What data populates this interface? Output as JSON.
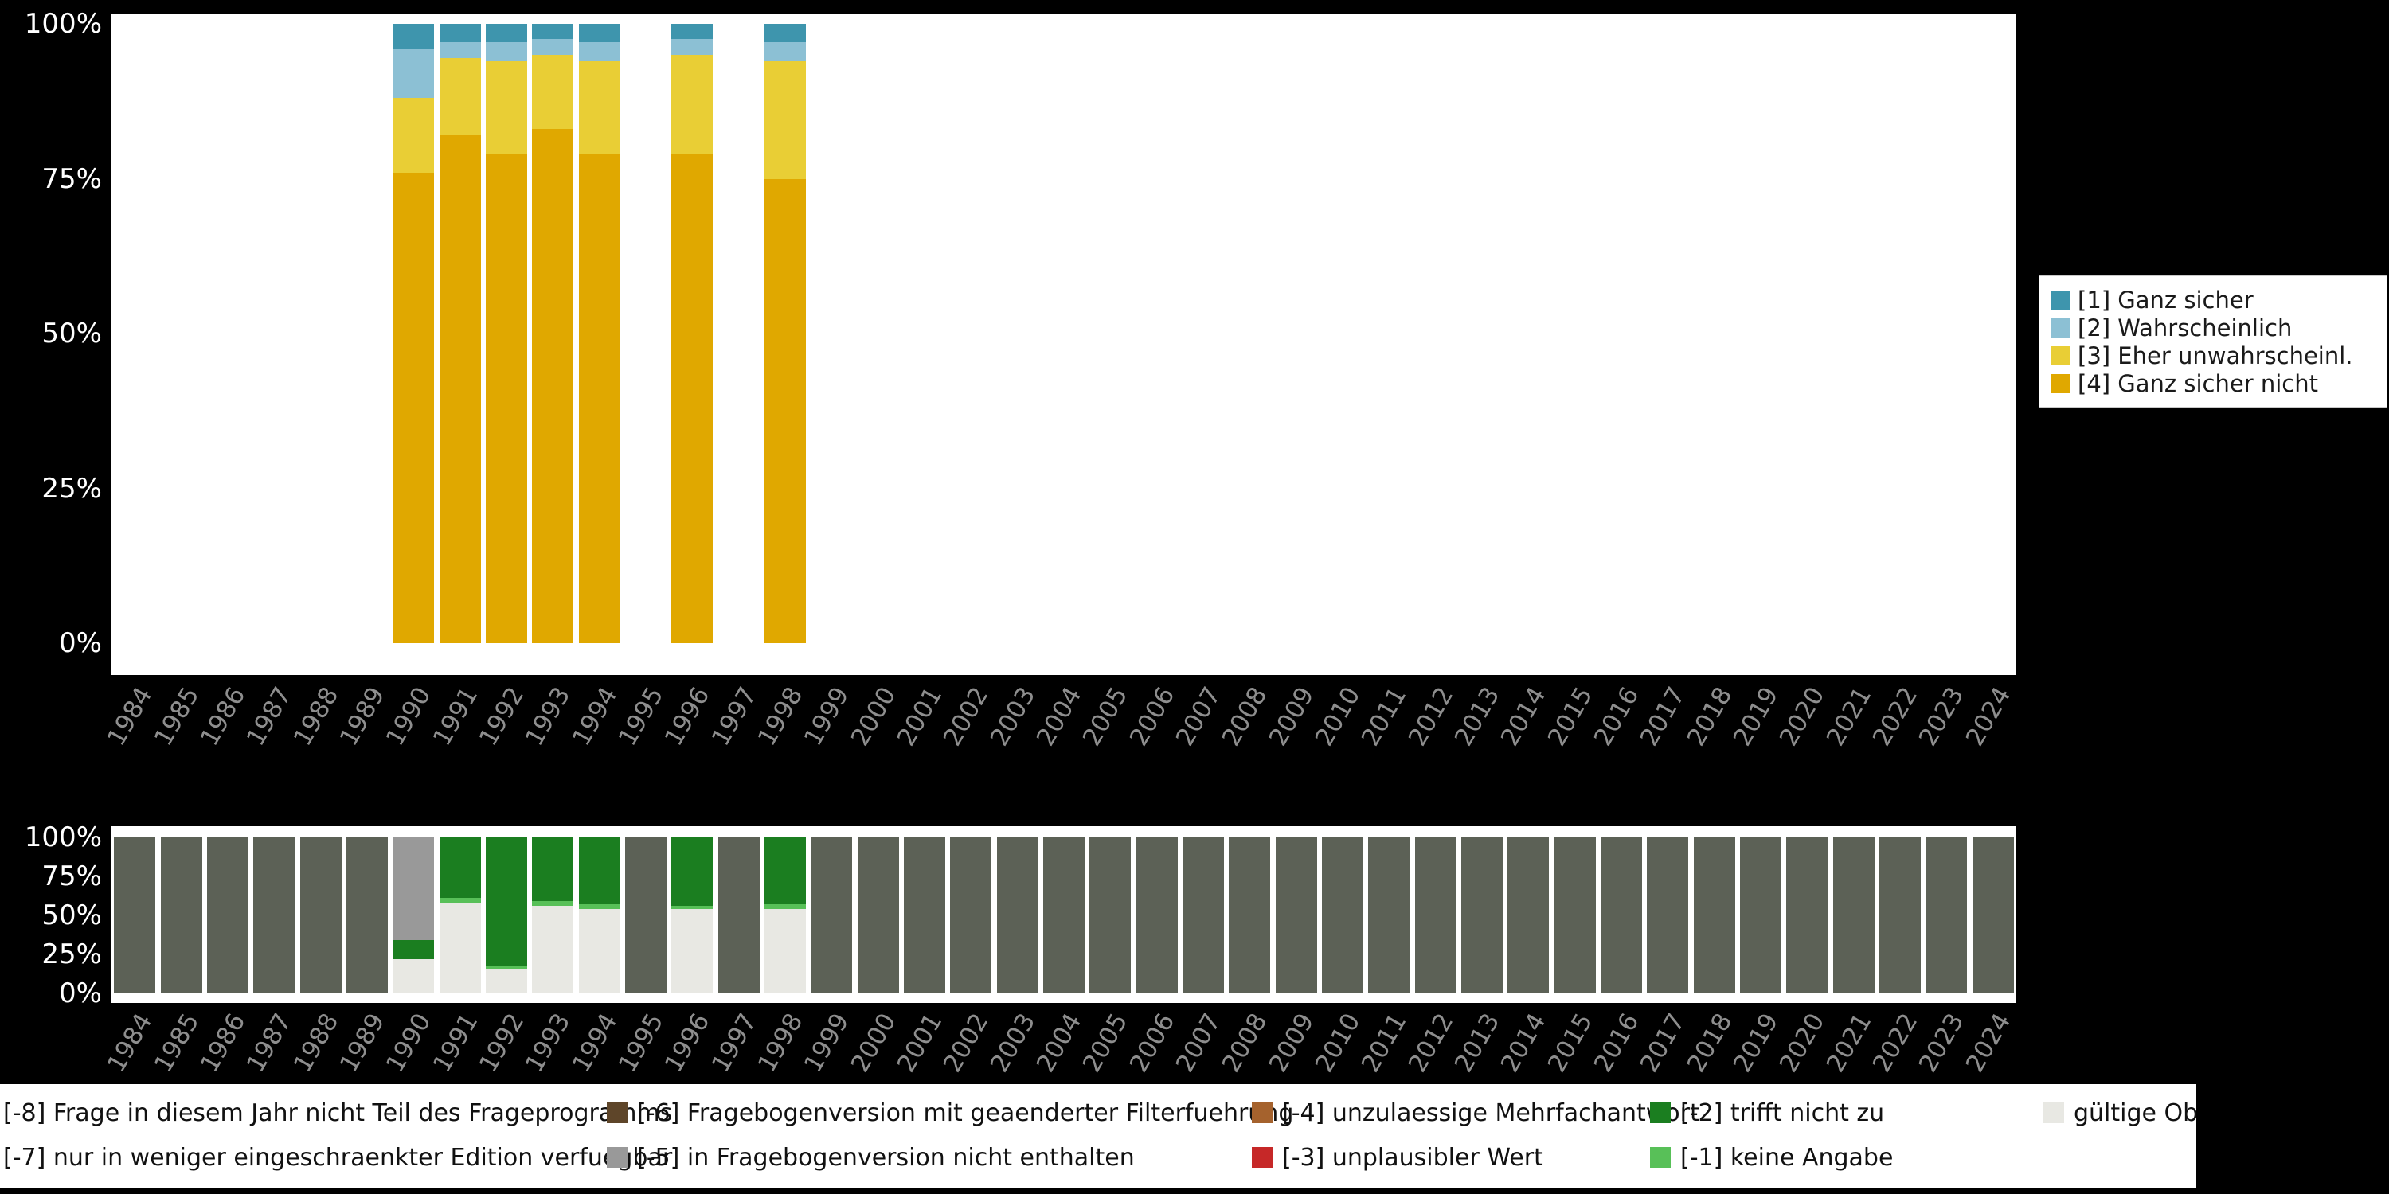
{
  "colors": {
    "background": "#000000",
    "panel": "#ffffff",
    "x_axis_text": "#8e8e8e",
    "y_axis_text": "#ffffff"
  },
  "y_ticks": [
    "100%",
    "75%",
    "50%",
    "25%",
    "0%"
  ],
  "top_legend": {
    "items": [
      {
        "label": "[1] Ganz sicher",
        "color": "#3e95ad"
      },
      {
        "label": "[2] Wahrscheinlich",
        "color": "#8cc0d4"
      },
      {
        "label": "[3] Eher unwahrscheinl.",
        "color": "#e9ce35"
      },
      {
        "label": "[4] Ganz sicher nicht",
        "color": "#e0a800"
      }
    ]
  },
  "bottom_legend": {
    "rows": [
      [
        {
          "code": "-8",
          "label": "[-8] Frage in diesem Jahr nicht Teil des Frageprogramms",
          "color": "#5c6156"
        },
        {
          "code": "-6",
          "label": "[-6] Fragebogenversion mit geaenderter Filterfuehrung",
          "color": "#5e4529"
        },
        {
          "code": "-4",
          "label": "[-4] unzulaessige Mehrfachantwort",
          "color": "#a5622d"
        },
        {
          "code": "-2",
          "label": "[-2] trifft nicht zu",
          "color": "#1b7e20"
        },
        {
          "code": "valid",
          "label": "gültige Observationen",
          "color": "#e8e8e3"
        }
      ],
      [
        {
          "code": "-7",
          "label": "[-7] nur in weniger eingeschraenkter Edition verfuegbar",
          "color": "#777777"
        },
        {
          "code": "-5",
          "label": "[-5] in Fragebogenversion nicht enthalten",
          "color": "#999999"
        },
        {
          "code": "-3",
          "label": "[-3] unplausibler Wert",
          "color": "#c62828"
        },
        {
          "code": "-1",
          "label": "[-1] keine Angabe",
          "color": "#58c058"
        }
      ]
    ]
  },
  "chart_data": [
    {
      "type": "bar",
      "stacked": true,
      "unit": "percent",
      "ylim": [
        0,
        100
      ],
      "y_tick_labels": [
        "0%",
        "25%",
        "50%",
        "75%",
        "100%"
      ],
      "legend_position": "right",
      "grid": false,
      "categories": [
        "1984",
        "1985",
        "1986",
        "1987",
        "1988",
        "1989",
        "1990",
        "1991",
        "1992",
        "1993",
        "1994",
        "1995",
        "1996",
        "1997",
        "1998",
        "1999",
        "2000",
        "2001",
        "2002",
        "2003",
        "2004",
        "2005",
        "2006",
        "2007",
        "2008",
        "2009",
        "2010",
        "2011",
        "2012",
        "2013",
        "2014",
        "2015",
        "2016",
        "2017",
        "2018",
        "2019",
        "2020",
        "2021",
        "2022",
        "2023",
        "2024"
      ],
      "series": [
        {
          "name": "[4] Ganz sicher nicht",
          "color": "#e0a800",
          "values": [
            0,
            0,
            0,
            0,
            0,
            0,
            76,
            82,
            79,
            83,
            79,
            0,
            79,
            0,
            75,
            0,
            0,
            0,
            0,
            0,
            0,
            0,
            0,
            0,
            0,
            0,
            0,
            0,
            0,
            0,
            0,
            0,
            0,
            0,
            0,
            0,
            0,
            0,
            0,
            0,
            0
          ]
        },
        {
          "name": "[3] Eher unwahrscheinl.",
          "color": "#e9ce35",
          "values": [
            0,
            0,
            0,
            0,
            0,
            0,
            12,
            12.5,
            15,
            12,
            15,
            0,
            16,
            0,
            19,
            0,
            0,
            0,
            0,
            0,
            0,
            0,
            0,
            0,
            0,
            0,
            0,
            0,
            0,
            0,
            0,
            0,
            0,
            0,
            0,
            0,
            0,
            0,
            0,
            0,
            0
          ]
        },
        {
          "name": "[2] Wahrscheinlich",
          "color": "#8cc0d4",
          "values": [
            0,
            0,
            0,
            0,
            0,
            0,
            8,
            2.5,
            3,
            2.5,
            3,
            0,
            2.5,
            0,
            3,
            0,
            0,
            0,
            0,
            0,
            0,
            0,
            0,
            0,
            0,
            0,
            0,
            0,
            0,
            0,
            0,
            0,
            0,
            0,
            0,
            0,
            0,
            0,
            0,
            0,
            0
          ]
        },
        {
          "name": "[1] Ganz sicher",
          "color": "#3e95ad",
          "values": [
            0,
            0,
            0,
            0,
            0,
            0,
            4,
            3,
            3,
            2.5,
            3,
            0,
            2.5,
            0,
            3,
            0,
            0,
            0,
            0,
            0,
            0,
            0,
            0,
            0,
            0,
            0,
            0,
            0,
            0,
            0,
            0,
            0,
            0,
            0,
            0,
            0,
            0,
            0,
            0,
            0,
            0
          ]
        }
      ]
    },
    {
      "type": "bar",
      "stacked": true,
      "unit": "percent",
      "ylim": [
        0,
        100
      ],
      "y_tick_labels": [
        "0%",
        "25%",
        "50%",
        "75%",
        "100%"
      ],
      "legend_position": "bottom",
      "grid": false,
      "categories": [
        "1984",
        "1985",
        "1986",
        "1987",
        "1988",
        "1989",
        "1990",
        "1991",
        "1992",
        "1993",
        "1994",
        "1995",
        "1996",
        "1997",
        "1998",
        "1999",
        "2000",
        "2001",
        "2002",
        "2003",
        "2004",
        "2005",
        "2006",
        "2007",
        "2008",
        "2009",
        "2010",
        "2011",
        "2012",
        "2013",
        "2014",
        "2015",
        "2016",
        "2017",
        "2018",
        "2019",
        "2020",
        "2021",
        "2022",
        "2023",
        "2024"
      ],
      "series": [
        {
          "name": "gültige Observationen",
          "color": "#e8e8e3",
          "values": [
            0,
            0,
            0,
            0,
            0,
            0,
            22,
            58,
            16,
            56,
            54,
            0,
            54,
            0,
            54,
            0,
            0,
            0,
            0,
            0,
            0,
            0,
            0,
            0,
            0,
            0,
            0,
            0,
            0,
            0,
            0,
            0,
            0,
            0,
            0,
            0,
            0,
            0,
            0,
            0,
            0
          ]
        },
        {
          "name": "[-1] keine Angabe",
          "color": "#58c058",
          "values": [
            0,
            0,
            0,
            0,
            0,
            0,
            0,
            3,
            2,
            3,
            3,
            0,
            2,
            0,
            3,
            0,
            0,
            0,
            0,
            0,
            0,
            0,
            0,
            0,
            0,
            0,
            0,
            0,
            0,
            0,
            0,
            0,
            0,
            0,
            0,
            0,
            0,
            0,
            0,
            0,
            0
          ]
        },
        {
          "name": "[-2] trifft nicht zu",
          "color": "#1b7e20",
          "values": [
            0,
            0,
            0,
            0,
            0,
            0,
            12,
            39,
            82,
            41,
            43,
            0,
            44,
            0,
            43,
            0,
            0,
            0,
            0,
            0,
            0,
            0,
            0,
            0,
            0,
            0,
            0,
            0,
            0,
            0,
            0,
            0,
            0,
            0,
            0,
            0,
            0,
            0,
            0,
            0,
            0
          ]
        },
        {
          "name": "[-5] in Fragebogenversion nicht enthalten",
          "color": "#999999",
          "values": [
            0,
            0,
            0,
            0,
            0,
            0,
            66,
            0,
            0,
            0,
            0,
            0,
            0,
            0,
            0,
            0,
            0,
            0,
            0,
            0,
            0,
            0,
            0,
            0,
            0,
            0,
            0,
            0,
            0,
            0,
            0,
            0,
            0,
            0,
            0,
            0,
            0,
            0,
            0,
            0,
            0
          ]
        },
        {
          "name": "[-8] Frage in diesem Jahr nicht Teil des Frageprogramms",
          "color": "#5c6156",
          "values": [
            100,
            100,
            100,
            100,
            100,
            100,
            0,
            0,
            0,
            0,
            0,
            100,
            0,
            100,
            0,
            100,
            100,
            100,
            100,
            100,
            100,
            100,
            100,
            100,
            100,
            100,
            100,
            100,
            100,
            100,
            100,
            100,
            100,
            100,
            100,
            100,
            100,
            100,
            100,
            100,
            100
          ]
        }
      ]
    }
  ]
}
